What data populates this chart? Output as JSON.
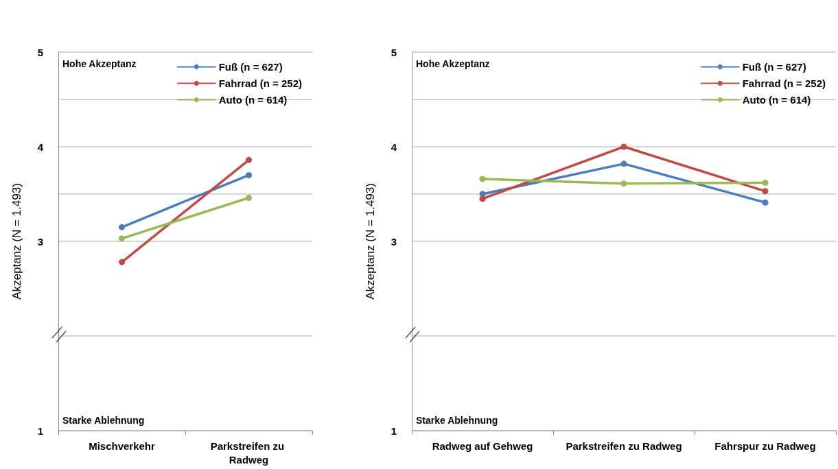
{
  "chart_data": [
    {
      "type": "line",
      "ylabel": "Akzeptanz (N = 1.493)",
      "categories": [
        "Mischverkehr",
        "Parkstreifen zu Radweg"
      ],
      "series": [
        {
          "name": "Fuß (n = 627)",
          "color": "#4a7ebb",
          "values": [
            3.15,
            3.7
          ]
        },
        {
          "name": "Fahrrad (n = 252)",
          "color": "#be4b48",
          "values": [
            2.78,
            3.86
          ]
        },
        {
          "name": "Auto (n = 614)",
          "color": "#98b954",
          "values": [
            3.03,
            3.46
          ]
        }
      ],
      "ylim": [
        1,
        5
      ],
      "yticks": [
        1,
        {
          "value": 2,
          "label": null
        },
        3,
        {
          "value": 3.5,
          "label": null
        },
        4,
        {
          "value": 4.5,
          "label": null
        },
        5
      ],
      "grid": "y",
      "legend": "top right",
      "marker": "circle",
      "line_style": "solid",
      "annotations": [
        "Hohe Akzeptanz",
        "Starke Ablehnung"
      ]
    },
    {
      "type": "line",
      "ylabel": "Akzeptanz (N = 1.493)",
      "categories": [
        "Radweg auf Gehweg",
        "Parkstreifen zu Radweg",
        "Fahrspur zu Radweg"
      ],
      "series": [
        {
          "name": "Fuß (n = 627)",
          "color": "#4a7ebb",
          "values": [
            3.5,
            3.82,
            3.41
          ]
        },
        {
          "name": "Fahrrad (n = 252)",
          "color": "#be4b48",
          "values": [
            3.45,
            4.0,
            3.53
          ]
        },
        {
          "name": "Auto (n = 614)",
          "color": "#98b954",
          "values": [
            3.66,
            3.61,
            3.62
          ]
        }
      ],
      "ylim": [
        1,
        5
      ],
      "yticks": [
        1,
        {
          "value": 2,
          "label": null
        },
        3,
        {
          "value": 3.5,
          "label": null
        },
        4,
        {
          "value": 4.5,
          "label": null
        },
        5
      ],
      "grid": "y",
      "legend": "top right",
      "marker": "circle",
      "line_style": "solid",
      "annotations": [
        "Hohe Akzeptanz",
        "Starke Ablehnung"
      ]
    }
  ]
}
